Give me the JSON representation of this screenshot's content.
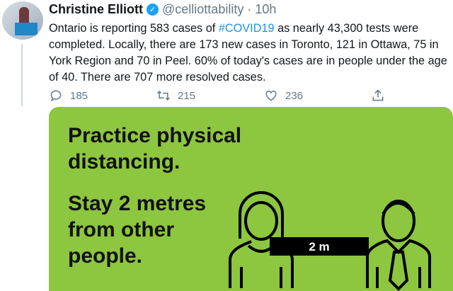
{
  "tweet": {
    "author": "Christine Elliott",
    "handle": "@celliottability",
    "time": "· 10h",
    "text_before": "Ontario is reporting 583 cases of ",
    "hashtag": "#COVID19",
    "text_after": " as nearly 43,300 tests were completed. Locally, there are 173 new cases in Toronto, 121 in Ottawa, 75 in York Region and 70 in Peel. 60% of today's cases are in people under the age of 40. There are 707 more resolved cases.",
    "replies": "185",
    "retweets": "215",
    "likes": "236"
  },
  "image": {
    "headline_1": "Practice physical",
    "headline_2": "distancing.",
    "sub_1": "Stay 2 metres",
    "sub_2": "from other",
    "sub_3": "people.",
    "distance": "2 m",
    "background_color": "#8dc63f"
  },
  "icons": [
    "reply-icon",
    "retweet-icon",
    "like-icon",
    "share-icon",
    "verified-icon"
  ]
}
